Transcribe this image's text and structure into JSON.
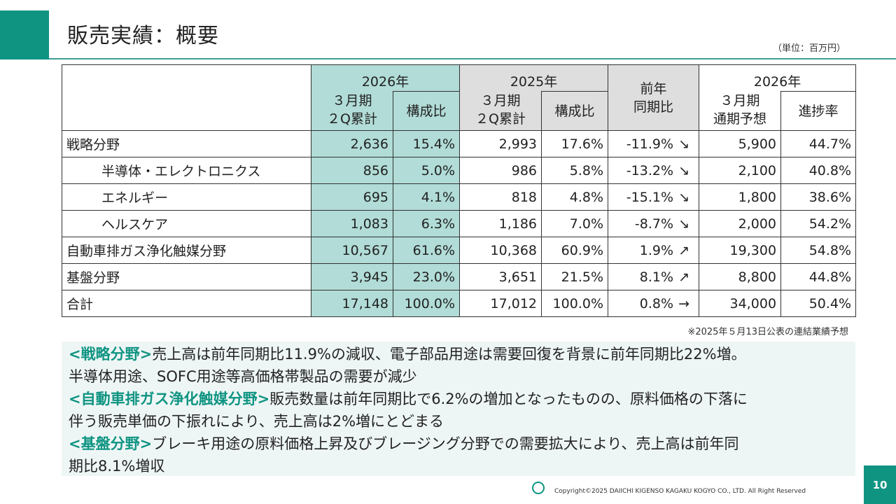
{
  "slide": {
    "title": "販売実績：概要",
    "unit_note": "（単位：百万円）",
    "footnote": "※2025年５月13日公表の連結業績予想",
    "copyright": "Copyright©2025 DAIICHI KIGENSO KAGAKU KOGYO CO., LTD. All Right Reserved",
    "page_number": "10"
  },
  "table": {
    "headers": {
      "current_period": [
        "2026年",
        "３月期",
        "２Q累計"
      ],
      "composition": "構成比",
      "prior_period": [
        "2025年",
        "３月期",
        "２Q累計"
      ],
      "yoy": [
        "前年",
        "同期比"
      ],
      "forecast": [
        "2026年",
        "３月期",
        "通期予想"
      ],
      "progress": "進捗率"
    },
    "rows": [
      {
        "label": "戦略分野",
        "current": "2,636",
        "current_ratio": "15.4%",
        "prior": "2,993",
        "prior_ratio": "17.6%",
        "yoy": "-11.9%",
        "trend": "↘",
        "forecast": "5,900",
        "progress": "44.7%"
      },
      {
        "label": "半導体・エレクトロニクス",
        "current": "856",
        "current_ratio": "5.0%",
        "prior": "986",
        "prior_ratio": "5.8%",
        "yoy": "-13.2%",
        "trend": "↘",
        "forecast": "2,100",
        "progress": "40.8%"
      },
      {
        "label": "エネルギー",
        "current": "695",
        "current_ratio": "4.1%",
        "prior": "818",
        "prior_ratio": "4.8%",
        "yoy": "-15.1%",
        "trend": "↘",
        "forecast": "1,800",
        "progress": "38.6%"
      },
      {
        "label": "ヘルスケア",
        "current": "1,083",
        "current_ratio": "6.3%",
        "prior": "1,186",
        "prior_ratio": "7.0%",
        "yoy": "-8.7%",
        "trend": "↘",
        "forecast": "2,000",
        "progress": "54.2%"
      },
      {
        "label": "自動車排ガス浄化触媒分野",
        "current": "10,567",
        "current_ratio": "61.6%",
        "prior": "10,368",
        "prior_ratio": "60.9%",
        "yoy": "1.9%",
        "trend": "↗",
        "forecast": "19,300",
        "progress": "54.8%"
      },
      {
        "label": "基盤分野",
        "current": "3,945",
        "current_ratio": "23.0%",
        "prior": "3,651",
        "prior_ratio": "21.5%",
        "yoy": "8.1%",
        "trend": "↗",
        "forecast": "8,800",
        "progress": "44.8%"
      },
      {
        "label": "合計",
        "current": "17,148",
        "current_ratio": "100.0%",
        "prior": "17,012",
        "prior_ratio": "100.0%",
        "yoy": "0.8%",
        "trend": "→",
        "forecast": "34,000",
        "progress": "50.4%"
      }
    ]
  },
  "summary": {
    "strategic_heading": "<戦略分野>",
    "strategic_text_1": "売上高は前年同期比11.9%の減収、電子部品用途は需要回復を背景に前年同期比22%増。",
    "strategic_text_2": "半導体用途、SOFC用途等高価格帯製品の需要が減少",
    "auto_heading": "<自動車排ガス浄化触媒分野>",
    "auto_text_1": "販売数量は前年同期比で6.2%の増加となったものの、原料価格の下落に",
    "auto_text_2": "伴う販売単価の下振れにより、売上高は2%増にとどまる",
    "base_heading": "<基盤分野>",
    "base_text_1": "ブレーキ用途の原料価格上昇及びブレージング分野での需要拡大により、売上高は前年同",
    "base_text_2": "期比8.1%増収"
  }
}
